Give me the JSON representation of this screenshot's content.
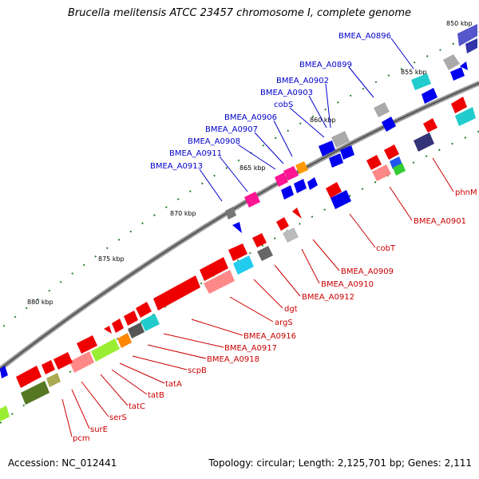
{
  "title": "Brucella melitensis ATCC 23457 chromosome I, complete genome",
  "footer": {
    "accession": "Accession: NC_012441",
    "info": "Topology: circular; Length: 2,125,701 bp; Genes: 2,111"
  },
  "colors": {
    "backbone": "#666666",
    "forward_label": "#0000cc",
    "reverse_label": "#cc0000",
    "tick_dot": "#2e7d32"
  },
  "ticks": [
    "850 kbp",
    "855 kbp",
    "860 kbp",
    "865 kbp",
    "870 kbp",
    "875 kbp",
    "880 kbp"
  ],
  "forward_labels": [
    "BMEA_A0896",
    "BMEA_A0899",
    "BMEA_A0902",
    "BMEA_A0903",
    "cobS",
    "BMEA_A0906",
    "BMEA_A0907",
    "BMEA_A0908",
    "BMEA_A0911",
    "BMEA_A0913"
  ],
  "reverse_labels": [
    "phnM",
    "BMEA_A0901",
    "cobT",
    "BMEA_A0909",
    "BMEA_A0910",
    "BMEA_A0912",
    "dgt",
    "argS",
    "BMEA_A0916",
    "BMEA_A0917",
    "BMEA_A0918",
    "scpB",
    "tatA",
    "tatB",
    "tatC",
    "serS",
    "surE",
    "pcm"
  ]
}
